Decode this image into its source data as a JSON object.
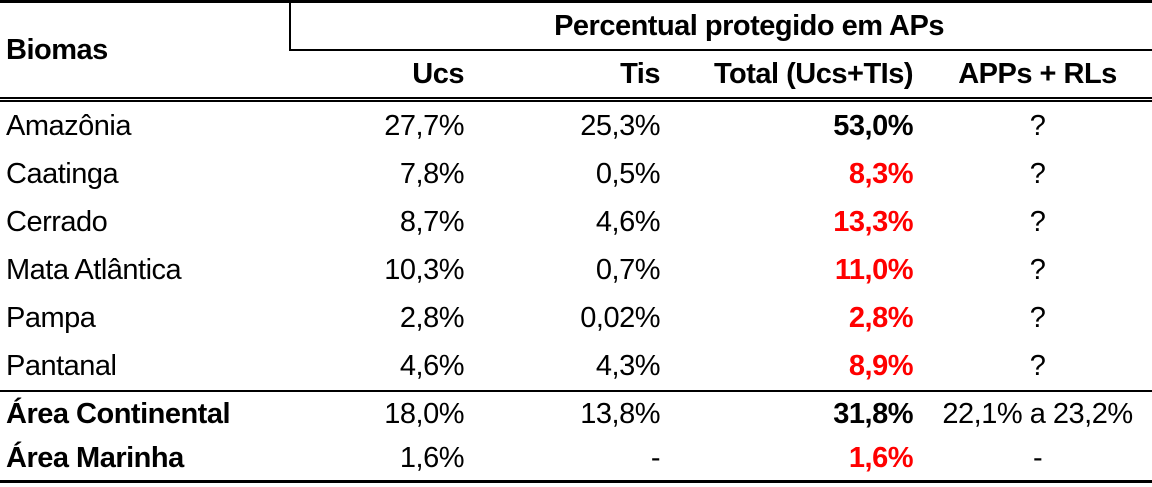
{
  "chart_data": {
    "type": "table",
    "title": "Percentual protegido em APs",
    "row_header": "Biomas",
    "columns": [
      "Ucs",
      "Tis",
      "Total (Ucs+TIs)",
      "APPs + RLs"
    ],
    "rows": [
      {
        "name": "Amazônia",
        "ucs": "27,7%",
        "tis": "25,3%",
        "total": "53,0%",
        "apps_rls": "?",
        "total_color": "black"
      },
      {
        "name": "Caatinga",
        "ucs": "7,8%",
        "tis": "0,5%",
        "total": "8,3%",
        "apps_rls": "?",
        "total_color": "red"
      },
      {
        "name": "Cerrado",
        "ucs": "8,7%",
        "tis": "4,6%",
        "total": "13,3%",
        "apps_rls": "?",
        "total_color": "red"
      },
      {
        "name": "Mata Atlântica",
        "ucs": "10,3%",
        "tis": "0,7%",
        "total": "11,0%",
        "apps_rls": "?",
        "total_color": "red"
      },
      {
        "name": "Pampa",
        "ucs": "2,8%",
        "tis": "0,02%",
        "total": "2,8%",
        "apps_rls": "?",
        "total_color": "red"
      },
      {
        "name": "Pantanal",
        "ucs": "4,6%",
        "tis": "4,3%",
        "total": "8,9%",
        "apps_rls": "?",
        "total_color": "red"
      },
      {
        "name": "Área Continental",
        "ucs": "18,0%",
        "tis": "13,8%",
        "total": "31,8%",
        "apps_rls": "22,1% a 23,2%",
        "total_color": "black"
      },
      {
        "name": "Área Marinha",
        "ucs": "1,6%",
        "tis": "-",
        "total": "1,6%",
        "apps_rls": "-",
        "total_color": "red"
      }
    ],
    "colors": {
      "total_highlight": "#FF0000",
      "text": "#000000",
      "background": "#FFFFFF"
    },
    "layout": {
      "grid": "off",
      "header_rule": "double",
      "summary_rows": [
        "Área Continental",
        "Área Marinha"
      ]
    }
  }
}
